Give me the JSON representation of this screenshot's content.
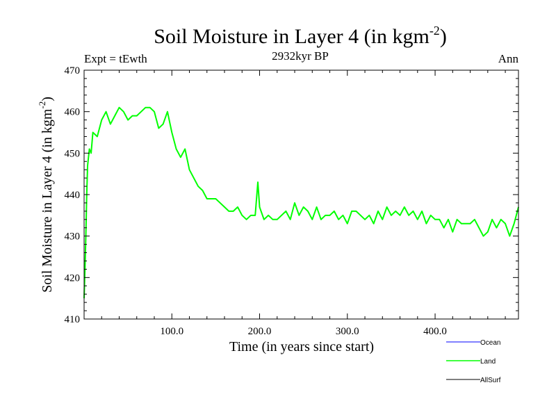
{
  "chart_data": {
    "type": "line",
    "title": "Soil Moisture in Layer 4 (in kgm",
    "title_superscript": "-2",
    "title_suffix": ")",
    "subtitle": "2932kyr BP",
    "left_label": "Expt = tEwth",
    "right_label": "Ann",
    "xlabel": "Time (in years since start)",
    "ylabel": "Soil Moisture in Layer 4 (in kgm",
    "ylabel_superscript": "-2",
    "ylabel_suffix": ")",
    "xlim": [
      0,
      495
    ],
    "ylim": [
      410,
      470
    ],
    "x_ticks": [
      100,
      200,
      300,
      400
    ],
    "x_tick_labels": [
      "100.0",
      "200.0",
      "300.0",
      "400.0"
    ],
    "y_ticks": [
      410,
      420,
      430,
      440,
      450,
      460,
      470
    ],
    "y_tick_labels": [
      "410",
      "420",
      "430",
      "440",
      "450",
      "460",
      "470"
    ],
    "legend": [
      {
        "name": "Ocean",
        "color": "#0000ff"
      },
      {
        "name": "Land",
        "color": "#00ff00"
      },
      {
        "name": "AllSurf",
        "color": "#000000"
      }
    ],
    "series": [
      {
        "name": "Land",
        "color": "#00ff00",
        "x": [
          0,
          1,
          2,
          3,
          4,
          5,
          6,
          8,
          10,
          15,
          20,
          25,
          30,
          35,
          40,
          45,
          50,
          55,
          60,
          65,
          70,
          75,
          80,
          85,
          90,
          95,
          100,
          105,
          110,
          115,
          120,
          125,
          130,
          135,
          140,
          145,
          150,
          155,
          160,
          165,
          170,
          175,
          180,
          185,
          190,
          195,
          198,
          200,
          205,
          210,
          215,
          220,
          225,
          230,
          235,
          240,
          245,
          250,
          255,
          260,
          265,
          270,
          275,
          280,
          285,
          290,
          295,
          300,
          305,
          310,
          315,
          320,
          325,
          330,
          335,
          340,
          345,
          350,
          355,
          360,
          365,
          370,
          375,
          380,
          385,
          390,
          395,
          400,
          403,
          405,
          410,
          415,
          420,
          425,
          430,
          435,
          440,
          445,
          450,
          455,
          460,
          465,
          470,
          475,
          480,
          485,
          490,
          495
        ],
        "values": [
          415,
          422,
          430,
          440,
          447,
          449,
          451,
          450,
          455,
          454,
          458,
          460,
          457,
          459,
          461,
          460,
          458,
          459,
          459,
          460,
          461,
          461,
          460,
          456,
          457,
          460,
          455,
          451,
          449,
          451,
          446,
          444,
          442,
          441,
          439,
          439,
          439,
          438,
          437,
          436,
          436,
          437,
          435,
          434,
          435,
          435,
          443,
          437,
          434,
          435,
          434,
          434,
          435,
          436,
          434,
          438,
          435,
          437,
          436,
          434,
          437,
          434,
          435,
          435,
          436,
          434,
          435,
          433,
          436,
          436,
          435,
          434,
          435,
          433,
          436,
          434,
          437,
          435,
          436,
          435,
          437,
          435,
          436,
          434,
          436,
          433,
          435,
          434,
          434,
          434,
          432,
          434,
          431,
          434,
          433,
          433,
          433,
          434,
          432,
          430,
          431,
          434,
          432,
          434,
          433,
          430,
          433,
          437
        ]
      }
    ]
  }
}
